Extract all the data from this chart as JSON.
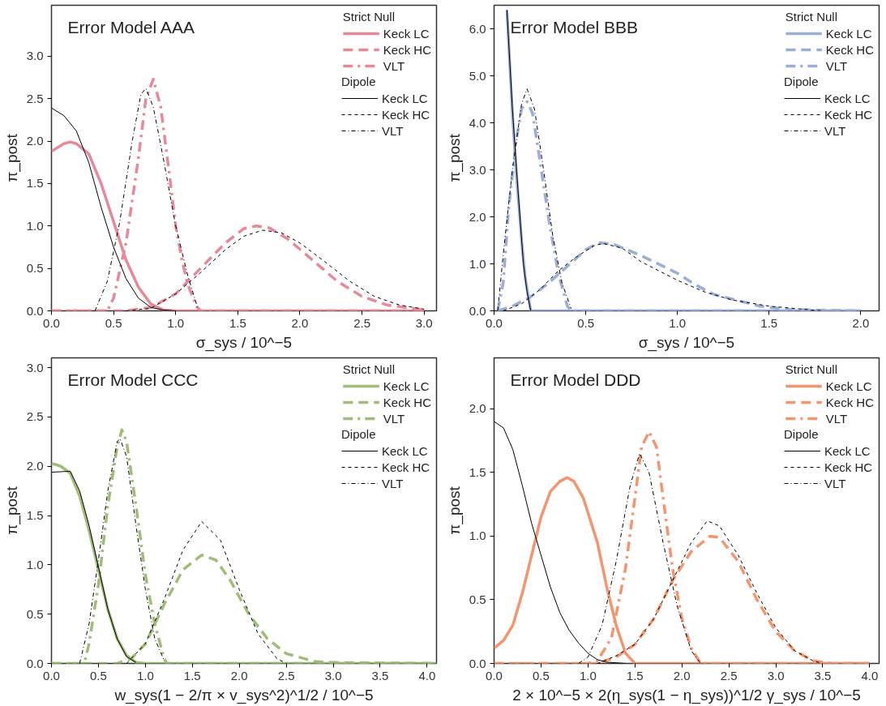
{
  "chart_data": [
    {
      "type": "line",
      "title": "Error Model AAA",
      "xlabel": "σ_sys / 10^−5",
      "ylabel": "π_post",
      "legend_title": [
        "Strict Null",
        "Dipole"
      ],
      "legend": "top right",
      "grid": false,
      "xlim": [
        0,
        3.1
      ],
      "ylim": [
        0,
        3.6
      ],
      "xticks": [
        {
          "value": 0,
          "label": "0.0"
        },
        0.5,
        {
          "value": 1,
          "label": "1.0"
        },
        1.5,
        {
          "value": 2,
          "label": "2.0"
        },
        2.5,
        {
          "value": 3,
          "label": "3.0"
        }
      ],
      "yticks": [
        {
          "value": 0,
          "label": "0.0"
        },
        0.5,
        {
          "value": 1,
          "label": "1.0"
        },
        1.5,
        {
          "value": 2,
          "label": "2.0"
        },
        2.5,
        {
          "value": 3,
          "label": "3.0"
        }
      ],
      "series": [
        {
          "name": "Keck LC",
          "color": "#e8899a",
          "line_style": "solid",
          "x": [
            0,
            0.1,
            0.15,
            0.2,
            0.3,
            0.4,
            0.5,
            0.6,
            0.7,
            0.8,
            0.9,
            1.0,
            3.0
          ],
          "values": [
            1.88,
            1.97,
            1.99,
            1.97,
            1.85,
            1.5,
            1.05,
            0.6,
            0.28,
            0.08,
            0.01,
            0,
            0
          ]
        },
        {
          "name": "Keck HC",
          "color": "#e8899a",
          "line_style": "dashed",
          "x": [
            0,
            0.6,
            0.8,
            1.0,
            1.2,
            1.4,
            1.55,
            1.65,
            1.75,
            1.9,
            2.1,
            2.3,
            2.5,
            2.7,
            2.9,
            3.0
          ],
          "values": [
            0,
            0,
            0.04,
            0.2,
            0.5,
            0.8,
            0.97,
            1.0,
            0.98,
            0.85,
            0.6,
            0.35,
            0.17,
            0.07,
            0.03,
            0.01
          ]
        },
        {
          "name": "VLT",
          "color": "#e8899a",
          "line_style": "dashdot",
          "x": [
            0,
            0.45,
            0.5,
            0.6,
            0.7,
            0.76,
            0.82,
            0.88,
            0.95,
            1.0,
            1.05,
            1.1,
            1.17,
            1.2,
            3.0
          ],
          "values": [
            0,
            0,
            0.15,
            0.8,
            1.8,
            2.5,
            2.73,
            2.4,
            1.6,
            1.0,
            0.6,
            0.3,
            0.05,
            0,
            0
          ]
        },
        {
          "name": "Keck LC",
          "color": "#000000",
          "line_style": "solid",
          "x": [
            0,
            0.1,
            0.2,
            0.3,
            0.4,
            0.5,
            0.6,
            0.7,
            0.8,
            0.9,
            1.0
          ],
          "values": [
            2.39,
            2.3,
            2.12,
            1.75,
            1.22,
            0.75,
            0.38,
            0.15,
            0.04,
            0.01,
            0
          ]
        },
        {
          "name": "Keck HC",
          "color": "#000000",
          "line_style": "dashed",
          "x": [
            0.6,
            0.8,
            1.0,
            1.2,
            1.4,
            1.55,
            1.7,
            1.85,
            2.0,
            2.2,
            2.4,
            2.6,
            2.8,
            3.0
          ],
          "values": [
            0,
            0.03,
            0.2,
            0.45,
            0.72,
            0.88,
            0.95,
            0.92,
            0.8,
            0.58,
            0.35,
            0.17,
            0.07,
            0.02
          ]
        },
        {
          "name": "VLT",
          "color": "#000000",
          "line_style": "dashdot",
          "x": [
            0.35,
            0.45,
            0.55,
            0.65,
            0.72,
            0.76,
            0.82,
            0.9,
            1.0,
            1.1,
            1.18
          ],
          "values": [
            0,
            0.35,
            1.05,
            2.0,
            2.55,
            2.62,
            2.4,
            1.8,
            1.0,
            0.4,
            0.02
          ]
        }
      ]
    },
    {
      "type": "line",
      "title": "Error Model BBB",
      "xlabel": "σ_sys / 10^−5",
      "ylabel": "π_post",
      "legend_title": [
        "Strict Null",
        "Dipole"
      ],
      "legend": "top right",
      "grid": false,
      "xlim": [
        0,
        2.1
      ],
      "ylim": [
        0,
        6.5
      ],
      "xticks": [
        {
          "value": 0,
          "label": "0.0"
        },
        0.5,
        {
          "value": 1,
          "label": "1.0"
        },
        1.5,
        {
          "value": 2,
          "label": "2.0"
        }
      ],
      "yticks": [
        {
          "value": 0,
          "label": "0.0"
        },
        {
          "value": 1,
          "label": "1.0"
        },
        {
          "value": 2,
          "label": "2.0"
        },
        {
          "value": 3,
          "label": "3.0"
        },
        {
          "value": 4,
          "label": "4.0"
        },
        {
          "value": 5,
          "label": "5.0"
        },
        {
          "value": 6,
          "label": "6.0"
        }
      ],
      "series": [
        {
          "name": "Keck LC",
          "color": "#9aaed6",
          "line_style": "solid",
          "x": [
            0.07,
            0.1,
            0.12,
            0.15,
            0.17,
            0.2,
            2.0
          ],
          "values": [
            6.4,
            4.2,
            3.0,
            1.5,
            0.7,
            0,
            0
          ]
        },
        {
          "name": "Keck HC",
          "color": "#9aaed6",
          "line_style": "dashed",
          "x": [
            0.02,
            0.1,
            0.2,
            0.3,
            0.4,
            0.5,
            0.57,
            0.65,
            0.8,
            1.0,
            1.1,
            1.2,
            1.3,
            1.45,
            1.6,
            2.0
          ],
          "values": [
            0,
            0.1,
            0.3,
            0.6,
            0.95,
            1.3,
            1.45,
            1.42,
            1.18,
            0.8,
            0.55,
            0.35,
            0.25,
            0.1,
            0.03,
            0
          ]
        },
        {
          "name": "VLT",
          "color": "#9aaed6",
          "line_style": "dashdot",
          "x": [
            0.02,
            0.05,
            0.08,
            0.12,
            0.15,
            0.18,
            0.21,
            0.25,
            0.3,
            0.35,
            0.4,
            0.42,
            2.0
          ],
          "values": [
            0,
            0.6,
            2.2,
            3.6,
            4.3,
            4.45,
            4.2,
            3.2,
            1.9,
            0.8,
            0.1,
            0,
            0
          ]
        },
        {
          "name": "Keck LC",
          "color": "#000000",
          "line_style": "solid",
          "x": [
            0.07,
            0.1,
            0.13,
            0.16,
            0.18,
            0.2
          ],
          "values": [
            6.4,
            4.3,
            2.6,
            1.0,
            0.4,
            0
          ]
        },
        {
          "name": "Keck HC",
          "color": "#000000",
          "line_style": "dashed",
          "x": [
            0.05,
            0.15,
            0.25,
            0.35,
            0.45,
            0.55,
            0.6,
            0.7,
            0.8,
            0.9,
            1.0,
            1.15,
            1.3,
            1.5,
            1.7,
            1.8
          ],
          "values": [
            0,
            0.15,
            0.45,
            0.85,
            1.15,
            1.4,
            1.43,
            1.33,
            1.05,
            0.85,
            0.65,
            0.4,
            0.23,
            0.1,
            0.03,
            0
          ]
        },
        {
          "name": "VLT",
          "color": "#000000",
          "line_style": "dashdot",
          "x": [
            0.02,
            0.05,
            0.1,
            0.15,
            0.18,
            0.22,
            0.27,
            0.32,
            0.37,
            0.42
          ],
          "values": [
            0,
            1.2,
            3.0,
            4.4,
            4.72,
            4.3,
            3.0,
            1.6,
            0.6,
            0.05
          ]
        }
      ]
    },
    {
      "type": "line",
      "title": "Error Model CCC",
      "xlabel": "w_sys(1 − 2/π × v_sys^2)^1/2 / 10^−5",
      "ylabel": "π_post",
      "legend_title": [
        "Strict Null",
        "Dipole"
      ],
      "legend": "top right",
      "grid": false,
      "xlim": [
        0,
        4.1
      ],
      "ylim": [
        0,
        3.1
      ],
      "xticks": [
        {
          "value": 0,
          "label": "0.0"
        },
        0.5,
        {
          "value": 1,
          "label": "1.0"
        },
        1.5,
        {
          "value": 2,
          "label": "2.0"
        },
        2.5,
        {
          "value": 3,
          "label": "3.0"
        },
        3.5,
        {
          "value": 4,
          "label": "4.0"
        }
      ],
      "yticks": [
        {
          "value": 0,
          "label": "0.0"
        },
        0.5,
        {
          "value": 1,
          "label": "1.0"
        },
        1.5,
        {
          "value": 2,
          "label": "2.0"
        },
        2.5,
        {
          "value": 3,
          "label": "3.0"
        }
      ],
      "series": [
        {
          "name": "Keck LC",
          "color": "#a0bd78",
          "line_style": "solid",
          "x": [
            0,
            0.1,
            0.2,
            0.3,
            0.4,
            0.5,
            0.6,
            0.7,
            0.8,
            0.9,
            1.0,
            4.1
          ],
          "values": [
            2.03,
            2.0,
            1.93,
            1.7,
            1.35,
            0.95,
            0.55,
            0.25,
            0.08,
            0.01,
            0,
            0
          ]
        },
        {
          "name": "Keck HC",
          "color": "#a0bd78",
          "line_style": "dashed",
          "x": [
            0,
            0.7,
            0.85,
            1.0,
            1.2,
            1.4,
            1.6,
            1.75,
            1.9,
            2.1,
            2.3,
            2.5,
            2.8,
            3.0,
            4.1
          ],
          "values": [
            0,
            0,
            0.05,
            0.2,
            0.6,
            0.95,
            1.1,
            1.05,
            0.85,
            0.5,
            0.25,
            0.1,
            0.02,
            0.01,
            0
          ]
        },
        {
          "name": "VLT",
          "color": "#a0bd78",
          "line_style": "dashdot",
          "x": [
            0,
            0.35,
            0.4,
            0.5,
            0.6,
            0.7,
            0.75,
            0.8,
            0.9,
            1.0,
            1.1,
            1.2,
            1.23,
            4.1
          ],
          "values": [
            0,
            0,
            0.2,
            0.8,
            1.6,
            2.2,
            2.37,
            2.25,
            1.6,
            0.9,
            0.4,
            0.05,
            0,
            0
          ]
        },
        {
          "name": "Keck LC",
          "color": "#000000",
          "line_style": "solid",
          "x": [
            0,
            0.2,
            0.3,
            0.4,
            0.5,
            0.6,
            0.7,
            0.8,
            0.9
          ],
          "values": [
            1.94,
            1.95,
            1.75,
            1.4,
            0.98,
            0.55,
            0.25,
            0.07,
            0.01
          ]
        },
        {
          "name": "Keck HC",
          "color": "#000000",
          "line_style": "dashed",
          "x": [
            0.8,
            1.0,
            1.2,
            1.4,
            1.6,
            1.8,
            2.0,
            2.2,
            2.4,
            2.5
          ],
          "values": [
            0,
            0.2,
            0.65,
            1.15,
            1.44,
            1.25,
            0.75,
            0.3,
            0.05,
            0
          ]
        },
        {
          "name": "VLT",
          "color": "#000000",
          "line_style": "dashdot",
          "x": [
            0.3,
            0.4,
            0.5,
            0.6,
            0.7,
            0.73,
            0.8,
            0.9,
            1.0,
            1.1,
            1.2
          ],
          "values": [
            0,
            0.4,
            1.05,
            1.75,
            2.25,
            2.28,
            2.1,
            1.4,
            0.75,
            0.25,
            0.03
          ]
        }
      ]
    },
    {
      "type": "line",
      "title": "Error Model DDD",
      "xlabel": "2 × 10^−5 × 2(η_sys(1 − η_sys))^1/2 γ_sys / 10^−5",
      "ylabel": "π_post",
      "legend_title": [
        "Strict Null",
        "Dipole"
      ],
      "legend": "top right",
      "grid": false,
      "xlim": [
        0,
        4.1
      ],
      "ylim": [
        0,
        2.4
      ],
      "xticks": [
        {
          "value": 0,
          "label": "0.0"
        },
        0.5,
        {
          "value": 1,
          "label": "1.0"
        },
        1.5,
        {
          "value": 2,
          "label": "2.0"
        },
        2.5,
        {
          "value": 3,
          "label": "3.0"
        },
        3.5,
        {
          "value": 4,
          "label": "4.0"
        }
      ],
      "yticks": [
        {
          "value": 0,
          "label": "0.0"
        },
        0.5,
        {
          "value": 1,
          "label": "1.0"
        },
        1.5,
        {
          "value": 2,
          "label": "2.0"
        }
      ],
      "series": [
        {
          "name": "Keck LC",
          "color": "#f4956f",
          "line_style": "solid",
          "x": [
            0,
            0.1,
            0.2,
            0.3,
            0.4,
            0.5,
            0.6,
            0.7,
            0.78,
            0.85,
            0.95,
            1.1,
            1.2,
            1.3,
            1.4,
            1.5,
            4.0
          ],
          "values": [
            0.12,
            0.18,
            0.3,
            0.55,
            0.85,
            1.15,
            1.35,
            1.43,
            1.46,
            1.43,
            1.3,
            0.95,
            0.6,
            0.3,
            0.08,
            0,
            0
          ]
        },
        {
          "name": "Keck HC",
          "color": "#f4956f",
          "line_style": "dashed",
          "x": [
            0,
            1.1,
            1.3,
            1.5,
            1.7,
            1.9,
            2.1,
            2.3,
            2.4,
            2.6,
            2.8,
            3.0,
            3.2,
            3.4,
            3.6,
            4.0
          ],
          "values": [
            0,
            0,
            0.05,
            0.15,
            0.35,
            0.65,
            0.88,
            1.0,
            0.99,
            0.8,
            0.5,
            0.25,
            0.1,
            0.02,
            0,
            0
          ]
        },
        {
          "name": "VLT",
          "color": "#f4956f",
          "line_style": "dashdot",
          "x": [
            0,
            1.0,
            1.1,
            1.25,
            1.4,
            1.5,
            1.57,
            1.65,
            1.73,
            1.8,
            1.9,
            2.0,
            2.1,
            2.2,
            4.0
          ],
          "values": [
            0,
            0,
            0.02,
            0.2,
            0.75,
            1.3,
            1.7,
            1.82,
            1.7,
            1.3,
            0.75,
            0.35,
            0.12,
            0,
            0
          ]
        },
        {
          "name": "Keck LC",
          "color": "#000000",
          "line_style": "solid",
          "x": [
            0,
            0.1,
            0.2,
            0.3,
            0.4,
            0.5,
            0.6,
            0.7,
            0.8,
            0.9,
            1.0,
            1.1,
            1.2,
            1.4
          ],
          "values": [
            1.9,
            1.85,
            1.68,
            1.4,
            1.1,
            0.85,
            0.6,
            0.4,
            0.26,
            0.16,
            0.08,
            0.03,
            0.01,
            0
          ]
        },
        {
          "name": "Keck HC",
          "color": "#000000",
          "line_style": "dashed",
          "x": [
            1.1,
            1.3,
            1.5,
            1.7,
            1.9,
            2.1,
            2.27,
            2.4,
            2.6,
            2.8,
            3.0,
            3.2,
            3.4,
            3.5
          ],
          "values": [
            0,
            0.06,
            0.15,
            0.35,
            0.65,
            0.95,
            1.12,
            1.08,
            0.85,
            0.55,
            0.28,
            0.1,
            0.02,
            0
          ]
        },
        {
          "name": "VLT",
          "color": "#000000",
          "line_style": "dashdot",
          "x": [
            0.9,
            1.0,
            1.15,
            1.3,
            1.45,
            1.55,
            1.65,
            1.8,
            1.95,
            2.1,
            2.2
          ],
          "values": [
            0,
            0.05,
            0.3,
            0.8,
            1.4,
            1.65,
            1.5,
            0.95,
            0.45,
            0.1,
            0
          ]
        }
      ]
    }
  ]
}
